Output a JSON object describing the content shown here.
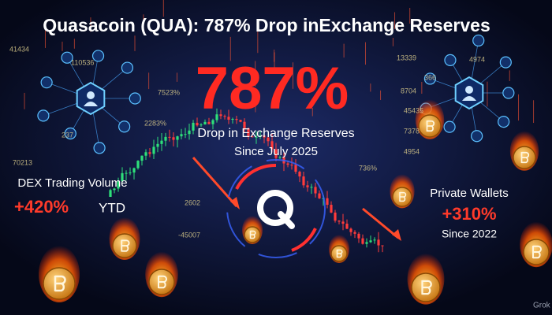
{
  "header": {
    "title": "Quasacoin (QUA): 787% Drop inExchange Reserves"
  },
  "center": {
    "headline": "787%",
    "subtitle": "Drop in Exchange Reserves",
    "since": "Since July 2025"
  },
  "left": {
    "label": "DEX Trading Volume",
    "value": "+420%",
    "suffix": "YTD"
  },
  "right": {
    "label": "Private Wallets",
    "value": "+310%",
    "since": "Since 2022"
  },
  "background_numbers": [
    "41434",
    "110536",
    "7523%",
    "2283%",
    "237",
    "70213",
    "13339",
    "4974",
    "366",
    "8704",
    "45435",
    "7378",
    "4954",
    "736%",
    "-45007",
    "2602"
  ],
  "watermark": "Grok"
}
